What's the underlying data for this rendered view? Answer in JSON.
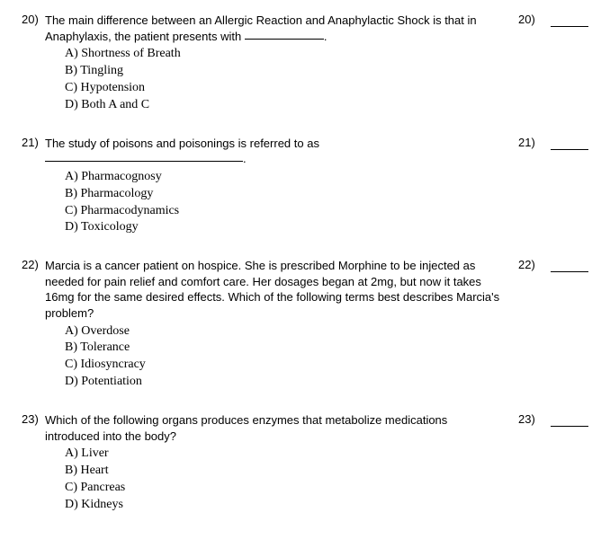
{
  "questions": [
    {
      "number": "20)",
      "text_before": "The main difference between an Allergic Reaction and Anaphylactic Shock is that in Anaphylaxis, the patient presents with ",
      "blank_width": 88,
      "text_after": ".",
      "right_number": "20)",
      "options": [
        "A) Shortness of Breath",
        "B) Tingling",
        "C) Hypotension",
        "D) Both A and C"
      ]
    },
    {
      "number": "21)",
      "text_before": "The study of poisons and poisonings is referred to as ",
      "blank_width": 220,
      "text_after": ".",
      "right_number": "21)",
      "options": [
        "A) Pharmacognosy",
        "B) Pharmacology",
        "C) Pharmacodynamics",
        "D) Toxicology"
      ]
    },
    {
      "number": "22)",
      "text_before": "Marcia is a cancer patient on hospice. She is prescribed Morphine to be injected as needed for pain relief and comfort care. Her dosages began at 2mg, but now it takes 16mg for the same desired effects. Which of the following terms best describes Marcia's problem?",
      "blank_width": 0,
      "text_after": "",
      "right_number": "22)",
      "options": [
        "A) Overdose",
        "B) Tolerance",
        "C) Idiosyncracy",
        "D) Potentiation"
      ]
    },
    {
      "number": "23)",
      "text_before": "Which of the following organs produces enzymes that metabolize medications introduced into the body?",
      "blank_width": 0,
      "text_after": "",
      "right_number": "23)",
      "options": [
        "A) Liver",
        "B) Heart",
        "C) Pancreas",
        "D) Kidneys"
      ]
    }
  ]
}
